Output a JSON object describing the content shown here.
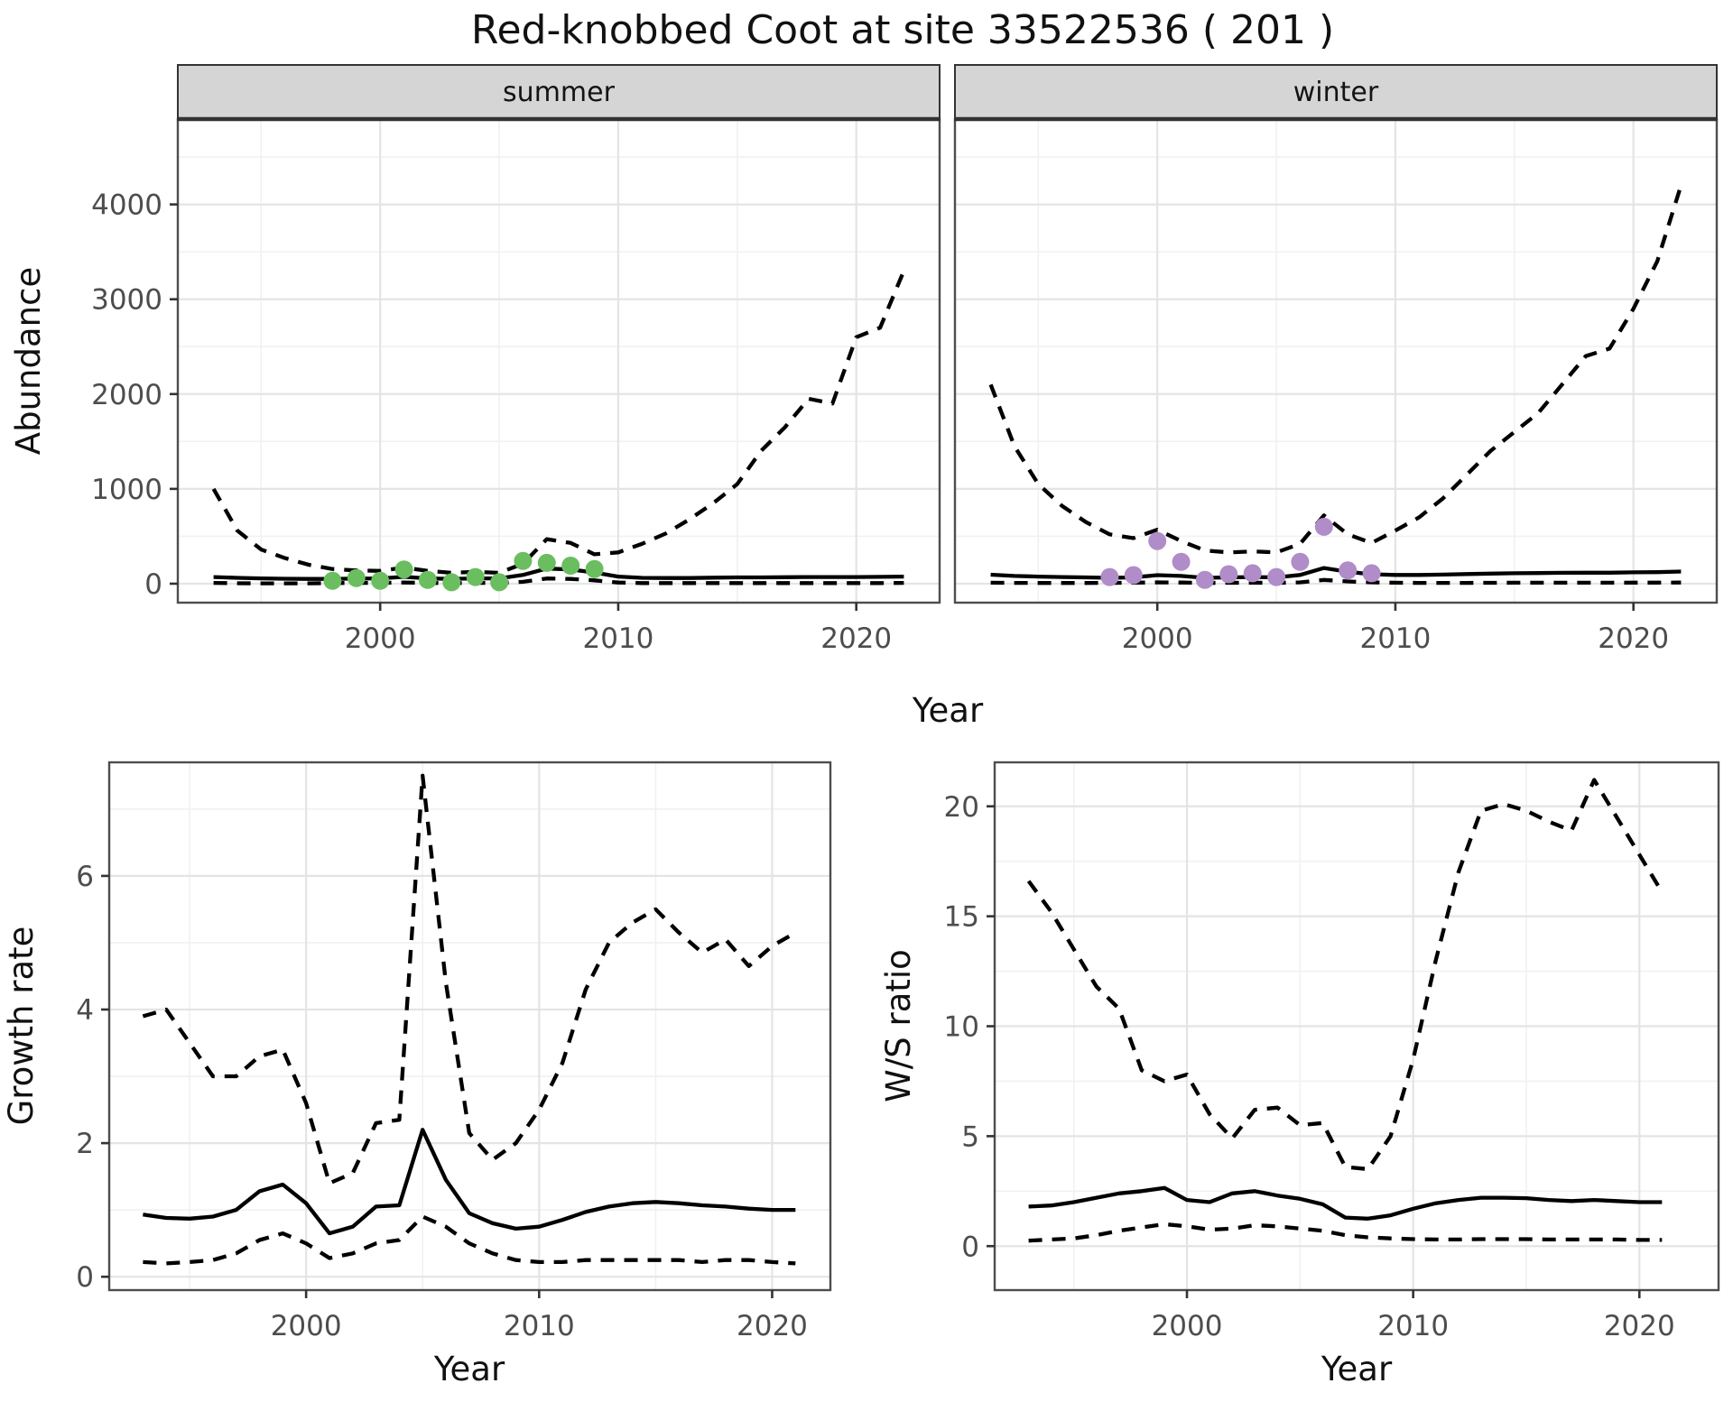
{
  "title": "Red-knobbed Coot at site 33522536 ( 201 )",
  "chart_data": [
    {
      "id": "abundance_summer",
      "type": "line",
      "facet_label": "summer",
      "xlabel": "Year",
      "ylabel": "Abundance",
      "xlim": [
        1991.5,
        2023.5
      ],
      "ylim": [
        -200,
        4900
      ],
      "xticks": [
        2000,
        2010,
        2020
      ],
      "xticks_minor": [
        1995,
        2005,
        2015
      ],
      "yticks": [
        0,
        1000,
        2000,
        3000,
        4000
      ],
      "yticks_minor": [
        500,
        1500,
        2500,
        3500,
        4500
      ],
      "years": [
        1993,
        1994,
        1995,
        1996,
        1997,
        1998,
        1999,
        2000,
        2001,
        2002,
        2003,
        2004,
        2005,
        2006,
        2007,
        2008,
        2009,
        2010,
        2011,
        2012,
        2013,
        2014,
        2015,
        2016,
        2017,
        2018,
        2019,
        2020,
        2021,
        2022
      ],
      "series": [
        {
          "name": "upper_ci",
          "style": "dashed",
          "values": [
            1000,
            560,
            360,
            270,
            200,
            155,
            140,
            135,
            170,
            135,
            115,
            125,
            115,
            210,
            470,
            430,
            310,
            330,
            420,
            530,
            680,
            850,
            1050,
            1400,
            1650,
            1950,
            1900,
            2600,
            2700,
            3300
          ]
        },
        {
          "name": "median",
          "style": "solid",
          "values": [
            70,
            62,
            56,
            52,
            50,
            50,
            54,
            56,
            72,
            56,
            50,
            56,
            56,
            92,
            160,
            150,
            118,
            75,
            62,
            60,
            60,
            64,
            66,
            66,
            68,
            70,
            70,
            70,
            72,
            75
          ]
        },
        {
          "name": "lower_ci",
          "style": "dashed",
          "values": [
            8,
            5,
            4,
            4,
            4,
            6,
            8,
            8,
            12,
            8,
            6,
            8,
            8,
            20,
            55,
            50,
            35,
            12,
            6,
            6,
            6,
            6,
            6,
            6,
            6,
            6,
            6,
            6,
            6,
            8
          ]
        }
      ],
      "points": {
        "name": "observed_counts",
        "color": "#6abe5f",
        "years": [
          1998,
          1999,
          2000,
          2001,
          2002,
          2003,
          2004,
          2005,
          2006,
          2007,
          2008,
          2009
        ],
        "values": [
          30,
          60,
          30,
          150,
          40,
          15,
          70,
          15,
          240,
          220,
          190,
          155
        ]
      }
    },
    {
      "id": "abundance_winter",
      "type": "line",
      "facet_label": "winter",
      "xlabel": "Year",
      "ylabel": "Abundance",
      "xlim": [
        1991.5,
        2023.5
      ],
      "ylim": [
        -200,
        4900
      ],
      "xticks": [
        2000,
        2010,
        2020
      ],
      "xticks_minor": [
        1995,
        2005,
        2015
      ],
      "yticks": [
        0,
        1000,
        2000,
        3000,
        4000
      ],
      "yticks_minor": [
        500,
        1500,
        2500,
        3500,
        4500
      ],
      "years": [
        1993,
        1994,
        1995,
        1996,
        1997,
        1998,
        1999,
        2000,
        2001,
        2002,
        2003,
        2004,
        2005,
        2006,
        2007,
        2008,
        2009,
        2010,
        2011,
        2012,
        2013,
        2014,
        2015,
        2016,
        2017,
        2018,
        2019,
        2020,
        2021,
        2022
      ],
      "series": [
        {
          "name": "upper_ci",
          "style": "dashed",
          "values": [
            2100,
            1450,
            1050,
            820,
            650,
            520,
            480,
            570,
            450,
            350,
            330,
            340,
            330,
            420,
            720,
            520,
            430,
            560,
            700,
            900,
            1150,
            1400,
            1600,
            1800,
            2100,
            2400,
            2480,
            2900,
            3400,
            4200
          ]
        },
        {
          "name": "median",
          "style": "solid",
          "values": [
            95,
            82,
            75,
            70,
            66,
            62,
            66,
            90,
            82,
            62,
            66,
            70,
            66,
            92,
            165,
            125,
            100,
            92,
            92,
            96,
            102,
            106,
            110,
            112,
            115,
            116,
            116,
            120,
            122,
            128
          ]
        },
        {
          "name": "lower_ci",
          "style": "dashed",
          "values": [
            10,
            8,
            7,
            7,
            7,
            8,
            10,
            14,
            12,
            8,
            9,
            10,
            9,
            14,
            40,
            24,
            14,
            10,
            8,
            8,
            8,
            9,
            10,
            10,
            10,
            10,
            10,
            11,
            11,
            12
          ]
        }
      ],
      "points": {
        "name": "observed_counts",
        "color": "#b08cc8",
        "years": [
          1998,
          1999,
          2000,
          2001,
          2002,
          2003,
          2004,
          2005,
          2006,
          2007,
          2008,
          2009
        ],
        "values": [
          70,
          90,
          450,
          230,
          40,
          100,
          110,
          70,
          230,
          600,
          140,
          110
        ]
      }
    },
    {
      "id": "growth_rate",
      "type": "line",
      "facet_label": null,
      "xlabel": "Year",
      "ylabel": "Growth rate",
      "xlim": [
        1991.55,
        2022.5
      ],
      "ylim": [
        -0.2,
        7.7
      ],
      "xticks": [
        2000,
        2010,
        2020
      ],
      "xticks_minor": [
        1995,
        2005,
        2015
      ],
      "yticks": [
        0,
        2,
        4,
        6
      ],
      "yticks_minor": [
        1,
        3,
        5,
        7
      ],
      "years": [
        1993,
        1994,
        1995,
        1996,
        1997,
        1998,
        1999,
        2000,
        2001,
        2002,
        2003,
        2004,
        2005,
        2006,
        2007,
        2008,
        2009,
        2010,
        2011,
        2012,
        2013,
        2014,
        2015,
        2016,
        2017,
        2018,
        2019,
        2020,
        2021
      ],
      "series": [
        {
          "name": "upper_ci",
          "style": "dashed",
          "values": [
            3.9,
            4.0,
            3.5,
            3.0,
            3.0,
            3.3,
            3.4,
            2.6,
            1.4,
            1.55,
            2.3,
            2.35,
            7.5,
            4.4,
            2.15,
            1.75,
            2.0,
            2.5,
            3.2,
            4.3,
            5.0,
            5.3,
            5.5,
            5.15,
            4.85,
            5.05,
            4.65,
            4.95,
            5.15
          ]
        },
        {
          "name": "median",
          "style": "solid",
          "values": [
            0.93,
            0.88,
            0.87,
            0.9,
            1.0,
            1.28,
            1.38,
            1.1,
            0.65,
            0.75,
            1.05,
            1.07,
            2.2,
            1.45,
            0.95,
            0.8,
            0.72,
            0.75,
            0.85,
            0.97,
            1.05,
            1.1,
            1.12,
            1.1,
            1.07,
            1.05,
            1.02,
            1.0,
            1.0
          ]
        },
        {
          "name": "lower_ci",
          "style": "dashed",
          "values": [
            0.22,
            0.2,
            0.22,
            0.25,
            0.35,
            0.55,
            0.65,
            0.5,
            0.28,
            0.35,
            0.5,
            0.55,
            0.9,
            0.75,
            0.5,
            0.35,
            0.25,
            0.22,
            0.22,
            0.25,
            0.25,
            0.25,
            0.25,
            0.25,
            0.22,
            0.25,
            0.25,
            0.22,
            0.2
          ]
        }
      ],
      "points": null
    },
    {
      "id": "ws_ratio",
      "type": "line",
      "facet_label": null,
      "xlabel": "Year",
      "ylabel": "W/S ratio",
      "xlim": [
        1991.5,
        2023.5
      ],
      "ylim": [
        -2.0,
        22.0
      ],
      "xticks": [
        2000,
        2010,
        2020
      ],
      "xticks_minor": [
        1995,
        2005,
        2015
      ],
      "yticks": [
        0,
        5,
        10,
        15,
        20
      ],
      "yticks_minor": [
        2.5,
        7.5,
        12.5,
        17.5
      ],
      "years": [
        1993,
        1994,
        1995,
        1996,
        1997,
        1998,
        1999,
        2000,
        2001,
        2002,
        2003,
        2004,
        2005,
        2006,
        2007,
        2008,
        2009,
        2010,
        2011,
        2012,
        2013,
        2014,
        2015,
        2016,
        2017,
        2018,
        2019,
        2020,
        2021
      ],
      "series": [
        {
          "name": "upper_ci",
          "style": "dashed",
          "values": [
            16.6,
            15.2,
            13.5,
            11.8,
            10.8,
            8.0,
            7.5,
            7.8,
            6.0,
            4.9,
            6.2,
            6.3,
            5.5,
            5.6,
            3.6,
            3.5,
            5.0,
            8.5,
            13.0,
            17.0,
            19.8,
            20.1,
            19.8,
            19.3,
            18.9,
            21.2,
            19.5,
            17.8,
            16.1
          ]
        },
        {
          "name": "median",
          "style": "solid",
          "values": [
            1.8,
            1.85,
            2.0,
            2.2,
            2.4,
            2.5,
            2.65,
            2.1,
            2.0,
            2.4,
            2.5,
            2.3,
            2.15,
            1.9,
            1.3,
            1.25,
            1.4,
            1.7,
            1.95,
            2.1,
            2.2,
            2.2,
            2.18,
            2.1,
            2.05,
            2.1,
            2.05,
            2.0,
            2.0
          ]
        },
        {
          "name": "lower_ci",
          "style": "dashed",
          "values": [
            0.25,
            0.3,
            0.35,
            0.5,
            0.7,
            0.85,
            1.0,
            0.9,
            0.75,
            0.8,
            0.95,
            0.9,
            0.8,
            0.7,
            0.5,
            0.4,
            0.35,
            0.32,
            0.3,
            0.3,
            0.32,
            0.32,
            0.32,
            0.3,
            0.3,
            0.3,
            0.3,
            0.28,
            0.28
          ]
        }
      ],
      "points": null
    }
  ]
}
